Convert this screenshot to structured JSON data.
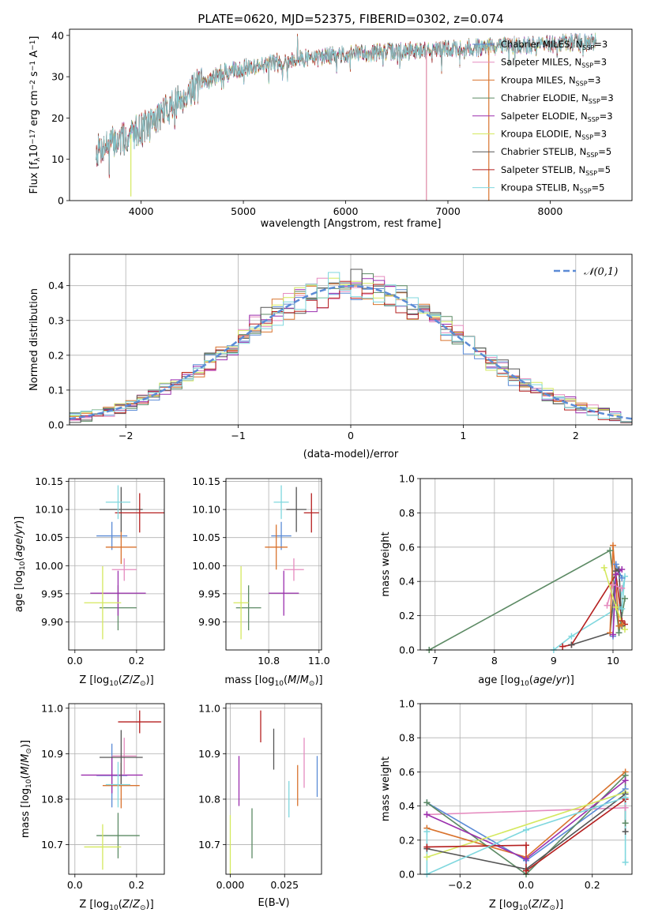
{
  "figure": {
    "title": "PLATE=0620, MJD=52375, FIBERID=0302, z=0.074"
  },
  "colors": {
    "Chabrier MILES": "#5b8bd6",
    "Salpeter MILES": "#e58bbf",
    "Kroupa MILES": "#d9732e",
    "Chabrier ELODIE": "#5c8a64",
    "Salpeter ELODIE": "#9b2fae",
    "Kroupa ELODIE": "#d4e85e",
    "Chabrier STELIB": "#555555",
    "Salpeter STELIB": "#b51f1f",
    "Kroupa STELIB": "#7fd7de",
    "gauss": "#5b8bd6"
  },
  "chart_data": [
    {
      "id": "spectrum",
      "type": "line",
      "xlabel": "wavelength [Angstrom, rest frame]",
      "ylabel": "Flux [f_λ10^-17 erg cm^-2 s^-1 A^-1]",
      "xlim": [
        3300,
        8800
      ],
      "ylim": [
        0,
        41.5
      ],
      "xticks": [
        4000,
        5000,
        6000,
        7000,
        8000
      ],
      "yticks": [
        0,
        10,
        20,
        30,
        40
      ],
      "grid": false,
      "legend_position": "right",
      "legend": [
        "Chabrier MILES, N_SSP=3",
        "Salpeter MILES, N_SSP=3",
        "Kroupa MILES, N_SSP=3",
        "Chabrier ELODIE, N_SSP=3",
        "Salpeter ELODIE, N_SSP=3",
        "Kroupa ELODIE, N_SSP=3",
        "Chabrier STELIB, N_SSP=5",
        "Salpeter STELIB, N_SSP=5",
        "Kroupa STELIB, N_SSP=5"
      ],
      "continuum": {
        "x": [
          3560,
          3700,
          3850,
          3950,
          4100,
          4300,
          4500,
          4800,
          5200,
          5600,
          6000,
          6400,
          6800,
          7200,
          7600,
          8000,
          8450
        ],
        "y": [
          12,
          14,
          15,
          17,
          19,
          23,
          27,
          31,
          33,
          34.5,
          35.5,
          36,
          36.5,
          37,
          37.5,
          38,
          38.5
        ]
      },
      "dropouts": [
        {
          "series": "Kroupa ELODIE",
          "x": 3900,
          "y_to": 1
        },
        {
          "series": "Kroupa ELODIE",
          "x": 6790,
          "y_to": 0
        },
        {
          "series": "Salpeter MILES",
          "x": 6790,
          "y_to": 0
        },
        {
          "series": "Kroupa MILES",
          "x": 7400,
          "y_to": 0
        }
      ]
    },
    {
      "id": "residuals",
      "type": "histogram",
      "xlabel": "(data-model)/error",
      "ylabel": "Normed distribution",
      "xlim": [
        -2.5,
        2.5
      ],
      "ylim": [
        0,
        0.49
      ],
      "xticks": [
        -2,
        -1,
        0,
        1,
        2
      ],
      "yticks": [
        0,
        0.1,
        0.2,
        0.3,
        0.4
      ],
      "grid": true,
      "legend_position": "top-right",
      "gauss_label": "N(0,1)",
      "bin_width": 0.1
    },
    {
      "id": "age_vs_Z",
      "type": "errorbar",
      "xlabel": "Z [log10(Z/Z⊙)]",
      "ylabel": "age [log10(age/yr)]",
      "xlim": [
        -0.02,
        0.29
      ],
      "ylim": [
        9.85,
        10.155
      ],
      "xticks": [
        0.0,
        0.2
      ],
      "yticks": [
        9.9,
        9.95,
        10.0,
        10.05,
        10.1,
        10.15
      ],
      "points": [
        {
          "series": "Chabrier MILES",
          "x": 0.12,
          "xerr": 0.05,
          "y": 10.053,
          "yerr": 0.025
        },
        {
          "series": "Salpeter MILES",
          "x": 0.16,
          "xerr": 0.04,
          "y": 9.993,
          "yerr": 0.02
        },
        {
          "series": "Kroupa MILES",
          "x": 0.15,
          "xerr": 0.05,
          "y": 10.033,
          "yerr": 0.03
        },
        {
          "series": "Chabrier ELODIE",
          "x": 0.14,
          "xerr": 0.06,
          "y": 9.925,
          "yerr": 0.04
        },
        {
          "series": "Salpeter ELODIE",
          "x": 0.14,
          "xerr": 0.09,
          "y": 9.951,
          "yerr": 0.04
        },
        {
          "series": "Kroupa ELODIE",
          "x": 0.09,
          "xerr": 0.06,
          "y": 9.934,
          "yerr": 0.065
        },
        {
          "series": "Chabrier STELIB",
          "x": 0.15,
          "xerr": 0.07,
          "y": 10.1,
          "yerr": 0.04
        },
        {
          "series": "Salpeter STELIB",
          "x": 0.21,
          "xerr": 0.08,
          "y": 10.094,
          "yerr": 0.035
        },
        {
          "series": "Kroupa STELIB",
          "x": 0.14,
          "xerr": 0.04,
          "y": 10.113,
          "yerr": 0.03
        }
      ]
    },
    {
      "id": "age_vs_mass",
      "type": "errorbar",
      "xlabel": "mass [log10(M/M⊙)]",
      "ylabel": "",
      "xlim": [
        10.63,
        11.01
      ],
      "ylim": [
        9.85,
        10.155
      ],
      "xticks": [
        10.8,
        11.0
      ],
      "yticks": [
        9.9,
        9.95,
        10.0,
        10.05,
        10.1,
        10.15
      ],
      "points": [
        {
          "series": "Chabrier MILES",
          "x": 10.85,
          "xerr": 0.04,
          "y": 10.053,
          "yerr": 0.025
        },
        {
          "series": "Salpeter MILES",
          "x": 10.9,
          "xerr": 0.04,
          "y": 9.993,
          "yerr": 0.02
        },
        {
          "series": "Kroupa MILES",
          "x": 10.83,
          "xerr": 0.045,
          "y": 10.033,
          "yerr": 0.04
        },
        {
          "series": "Chabrier ELODIE",
          "x": 10.72,
          "xerr": 0.05,
          "y": 9.925,
          "yerr": 0.04
        },
        {
          "series": "Salpeter ELODIE",
          "x": 10.86,
          "xerr": 0.06,
          "y": 9.951,
          "yerr": 0.04
        },
        {
          "series": "Kroupa ELODIE",
          "x": 10.69,
          "xerr": 0.03,
          "y": 9.934,
          "yerr": 0.065
        },
        {
          "series": "Chabrier STELIB",
          "x": 10.91,
          "xerr": 0.04,
          "y": 10.1,
          "yerr": 0.04
        },
        {
          "series": "Salpeter STELIB",
          "x": 10.97,
          "xerr": 0.03,
          "y": 10.094,
          "yerr": 0.035
        },
        {
          "series": "Kroupa STELIB",
          "x": 10.85,
          "xerr": 0.03,
          "y": 10.113,
          "yerr": 0.03
        }
      ]
    },
    {
      "id": "weight_vs_age",
      "type": "line",
      "xlabel": "age [log10(age/yr)]",
      "ylabel": "mass weight",
      "xlim": [
        6.75,
        10.32
      ],
      "ylim": [
        0,
        1.0
      ],
      "xticks": [
        7,
        8,
        9,
        10
      ],
      "yticks": [
        0.0,
        0.2,
        0.4,
        0.6,
        0.8,
        1.0
      ],
      "grid": true,
      "series": [
        {
          "name": "Chabrier ELODIE",
          "x": [
            6.9,
            9.95,
            10.1,
            10.2
          ],
          "y": [
            0.0,
            0.58,
            0.1,
            0.3
          ]
        },
        {
          "name": "Kroupa STELIB",
          "x": [
            9.0,
            9.3,
            10.1,
            10.2,
            10.15
          ],
          "y": [
            0.0,
            0.08,
            0.25,
            0.43,
            0.24
          ]
        },
        {
          "name": "Salpeter STELIB",
          "x": [
            9.15,
            9.3,
            10.05,
            10.15,
            10.2
          ],
          "y": [
            0.02,
            0.03,
            0.44,
            0.17,
            0.15
          ]
        },
        {
          "name": "Chabrier STELIB",
          "x": [
            9.3,
            9.95,
            10.05,
            10.1,
            10.15
          ],
          "y": [
            0.03,
            0.1,
            0.46,
            0.47,
            0.14
          ]
        },
        {
          "name": "Kroupa MILES",
          "x": [
            9.95,
            10.0,
            10.1,
            10.15
          ],
          "y": [
            0.1,
            0.61,
            0.14,
            0.15
          ]
        },
        {
          "name": "Chabrier MILES",
          "x": [
            10.0,
            10.05,
            10.15
          ],
          "y": [
            0.08,
            0.5,
            0.42
          ]
        },
        {
          "name": "Salpeter MILES",
          "x": [
            9.9,
            10.0,
            10.15
          ],
          "y": [
            0.26,
            0.38,
            0.36
          ]
        },
        {
          "name": "Salpeter ELODIE",
          "x": [
            10.0,
            10.05,
            10.15
          ],
          "y": [
            0.09,
            0.44,
            0.47
          ]
        },
        {
          "name": "Kroupa ELODIE",
          "x": [
            9.85,
            10.05,
            10.2
          ],
          "y": [
            0.48,
            0.25,
            0.12
          ]
        }
      ]
    },
    {
      "id": "mass_vs_Z",
      "type": "errorbar",
      "xlabel": "Z [log10(Z/Z⊙)]",
      "ylabel": "mass [log10(M/M⊙)]",
      "xlim": [
        -0.02,
        0.29
      ],
      "ylim": [
        10.635,
        11.01
      ],
      "xticks": [
        0.0,
        0.2
      ],
      "yticks": [
        10.7,
        10.8,
        10.9,
        11.0
      ],
      "points": [
        {
          "series": "Chabrier MILES",
          "x": 0.12,
          "xerr": 0.05,
          "y": 10.852,
          "yerr": 0.07
        },
        {
          "series": "Salpeter MILES",
          "x": 0.16,
          "xerr": 0.04,
          "y": 10.895,
          "yerr": 0.04
        },
        {
          "series": "Kroupa MILES",
          "x": 0.15,
          "xerr": 0.06,
          "y": 10.83,
          "yerr": 0.05
        },
        {
          "series": "Chabrier ELODIE",
          "x": 0.14,
          "xerr": 0.07,
          "y": 10.72,
          "yerr": 0.05
        },
        {
          "series": "Salpeter ELODIE",
          "x": 0.12,
          "xerr": 0.1,
          "y": 10.853,
          "yerr": 0.04
        },
        {
          "series": "Kroupa ELODIE",
          "x": 0.09,
          "xerr": 0.06,
          "y": 10.695,
          "yerr": 0.05
        },
        {
          "series": "Chabrier STELIB",
          "x": 0.15,
          "xerr": 0.07,
          "y": 10.892,
          "yerr": 0.06
        },
        {
          "series": "Salpeter STELIB",
          "x": 0.21,
          "xerr": 0.07,
          "y": 10.97,
          "yerr": 0.025
        },
        {
          "series": "Kroupa STELIB",
          "x": 0.14,
          "xerr": 0.04,
          "y": 10.832,
          "yerr": 0.05
        }
      ]
    },
    {
      "id": "mass_vs_ebv",
      "type": "errorbar",
      "xlabel": "E(B-V)",
      "ylabel": "",
      "xlim": [
        -0.002,
        0.042
      ],
      "ylim": [
        10.635,
        11.01
      ],
      "xticks": [
        0.0,
        0.025
      ],
      "yticks": [
        10.7,
        10.8,
        10.9,
        11.0
      ],
      "points": [
        {
          "series": "Chabrier MILES",
          "x": 0.04,
          "xerr": 0,
          "y": 10.85,
          "yerr": 0.045
        },
        {
          "series": "Salpeter MILES",
          "x": 0.034,
          "xerr": 0,
          "y": 10.88,
          "yerr": 0.055
        },
        {
          "series": "Kroupa MILES",
          "x": 0.031,
          "xerr": 0,
          "y": 10.83,
          "yerr": 0.045
        },
        {
          "series": "Chabrier ELODIE",
          "x": 0.01,
          "xerr": 0,
          "y": 10.725,
          "yerr": 0.055
        },
        {
          "series": "Salpeter ELODIE",
          "x": 0.004,
          "xerr": 0,
          "y": 10.84,
          "yerr": 0.055
        },
        {
          "series": "Kroupa ELODIE",
          "x": 0.0,
          "xerr": 0,
          "y": 10.7,
          "yerr": 0.065
        },
        {
          "series": "Chabrier STELIB",
          "x": 0.02,
          "xerr": 0,
          "y": 10.91,
          "yerr": 0.045
        },
        {
          "series": "Salpeter STELIB",
          "x": 0.014,
          "xerr": 0,
          "y": 10.96,
          "yerr": 0.035
        },
        {
          "series": "Kroupa STELIB",
          "x": 0.027,
          "xerr": 0,
          "y": 10.8,
          "yerr": 0.04
        }
      ]
    },
    {
      "id": "weight_vs_Z",
      "type": "line",
      "xlabel": "Z [log10(Z/Z⊙)]",
      "ylabel": "mass weight",
      "xlim": [
        -0.32,
        0.32
      ],
      "ylim": [
        0,
        1.0
      ],
      "xticks": [
        -0.2,
        0.0,
        0.2
      ],
      "yticks": [
        0.0,
        0.2,
        0.4,
        0.6,
        0.8,
        1.0
      ],
      "grid": true,
      "series": [
        {
          "name": "Salpeter MILES",
          "x": [
            -0.3,
            0.3
          ],
          "y": [
            0.35,
            0.39
          ]
        },
        {
          "name": "Kroupa MILES",
          "x": [
            -0.3,
            0.0,
            0.3
          ],
          "y": [
            0.27,
            0.1,
            0.6
          ]
        },
        {
          "name": "Chabrier MILES",
          "x": [
            -0.3,
            0.0,
            0.3
          ],
          "y": [
            0.42,
            0.08,
            0.5
          ]
        },
        {
          "name": "Chabrier ELODIE",
          "x": [
            -0.3,
            0.0,
            0.3,
            0.3
          ],
          "y": [
            0.42,
            0.0,
            0.58,
            0.3
          ]
        },
        {
          "name": "Salpeter ELODIE",
          "x": [
            -0.3,
            0.0,
            0.3
          ],
          "y": [
            0.35,
            0.09,
            0.55
          ]
        },
        {
          "name": "Kroupa ELODIE",
          "x": [
            -0.3,
            0.3
          ],
          "y": [
            0.1,
            0.48
          ]
        },
        {
          "name": "Chabrier STELIB",
          "x": [
            -0.3,
            0.0,
            0.3,
            0.3
          ],
          "y": [
            0.15,
            0.03,
            0.47,
            0.25
          ]
        },
        {
          "name": "Salpeter STELIB",
          "x": [
            -0.3,
            0.0,
            0.0,
            0.3
          ],
          "y": [
            0.16,
            0.17,
            0.02,
            0.44
          ]
        },
        {
          "name": "Kroupa STELIB",
          "x": [
            -0.3,
            -0.3,
            0.0,
            0.3,
            0.3
          ],
          "y": [
            0.25,
            0.0,
            0.26,
            0.45,
            0.07
          ]
        }
      ]
    }
  ]
}
